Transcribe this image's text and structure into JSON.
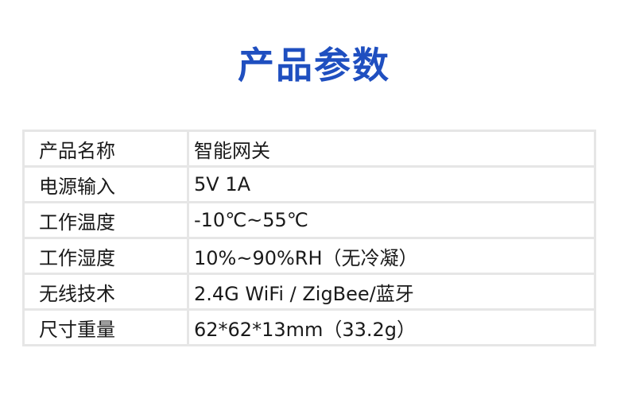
{
  "title": "产品参数",
  "rows": [
    {
      "label": "产品名称",
      "value": "智能网关"
    },
    {
      "label": "电源输入",
      "value": "5V 1A"
    },
    {
      "label": "工作温度",
      "value": "-10℃~55℃"
    },
    {
      "label": "工作湿度",
      "value": "10%~90%RH（无冷凝）"
    },
    {
      "label": "无线技术",
      "value": "2.4G WiFi / ZigBee/蓝牙"
    },
    {
      "label": "尺寸重量",
      "value": "62*62*13mm（33.2g）"
    }
  ]
}
